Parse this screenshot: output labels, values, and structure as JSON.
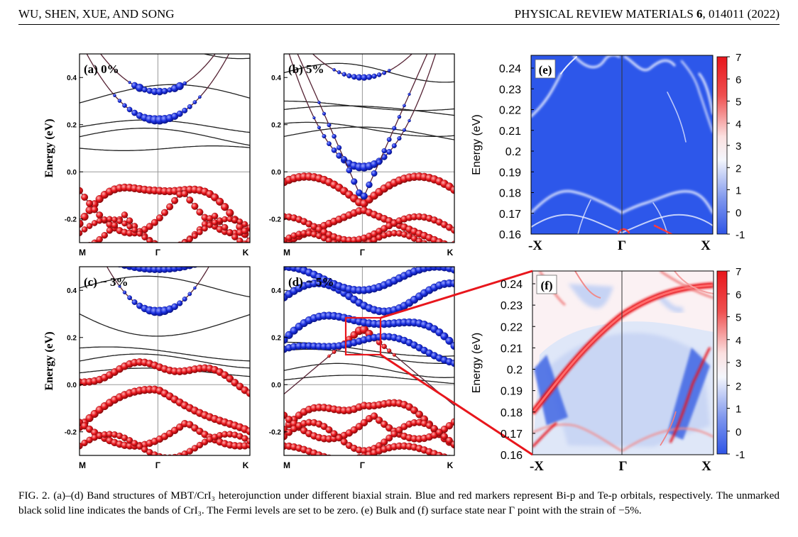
{
  "header": {
    "left": "WU, SHEN, XUE, AND SONG",
    "journal": "PHYSICAL REVIEW MATERIALS",
    "volume": "6",
    "article": ", 014011 (2022)"
  },
  "bands": {
    "ylabel": "Energy (eV)",
    "yticks": [
      "0.4",
      "0.2",
      "0.0",
      "-0.2"
    ],
    "xticks": [
      "M",
      "Γ",
      "K"
    ],
    "panels": [
      {
        "id": "a",
        "label": "(a) 0%"
      },
      {
        "id": "b",
        "label": "(b) 5%"
      },
      {
        "id": "c",
        "label": "(c) − 3%"
      },
      {
        "id": "d",
        "label": "(d) − 5%"
      }
    ],
    "colors": {
      "bi_p": "#1a2fe0",
      "te_p": "#e8161c",
      "cri3": "#222222"
    }
  },
  "states": {
    "ylabel": "Energy (eV)",
    "yticks": [
      "0.24",
      "0.23",
      "0.22",
      "0.21",
      "0.2",
      "0.19",
      "0.18",
      "0.17",
      "0.16"
    ],
    "xticks": [
      "-X",
      "Γ",
      "X"
    ],
    "colorbar_ticks": [
      "7",
      "6",
      "5",
      "4",
      "3",
      "2",
      "1",
      "0",
      "-1"
    ],
    "panels": [
      {
        "id": "e",
        "label": "(e)"
      },
      {
        "id": "f",
        "label": "(f)"
      }
    ]
  },
  "caption": {
    "label": "FIG. 2.",
    "text": " (a)–(d) Band structures of MBT/CrI₃ heterojunction under different biaxial strain. Blue and red markers represent Bi-p and Te-p orbitals, respectively. The unmarked black solid line indicates the bands of CrI₃. The Fermi levels are set to be zero. (e) Bulk and (f) surface state near Γ point with the strain of −5%."
  }
}
